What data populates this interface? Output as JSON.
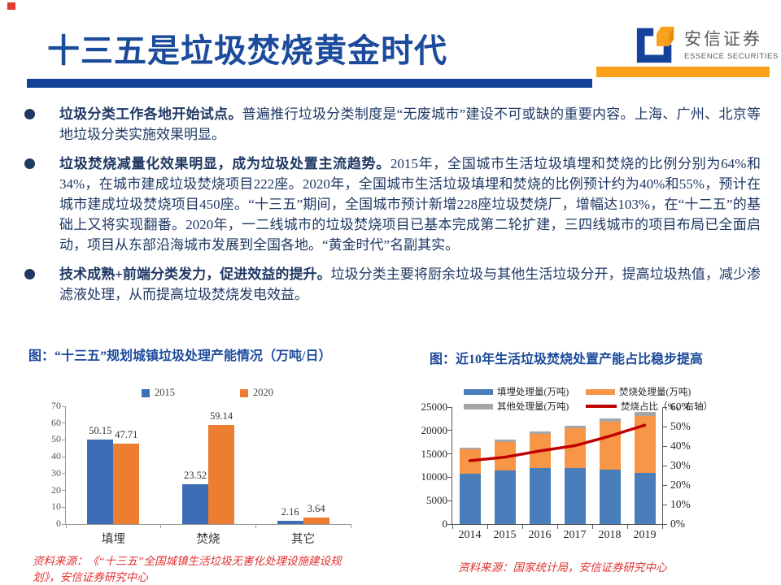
{
  "slide": {
    "title": "十三五是垃圾焚烧黄金时代",
    "logo": {
      "cn": "安信证券",
      "en": "ESSENCE SECURITIES"
    },
    "bullets": [
      {
        "lead": "垃圾分类工作各地开始试点。",
        "body": "普遍推行垃圾分类制度是“无废城市”建设不可或缺的重要内容。上海、广州、北京等地垃圾分类实施效果明显。"
      },
      {
        "lead": "垃圾焚烧减量化效果明显，成为垃圾处置主流趋势。",
        "body": "2015年，全国城市生活垃圾填埋和焚烧的比例分别为64%和34%，在城市建成垃圾焚烧项目222座。2020年，全国城市生活垃圾填埋和焚烧的比例预计约为40%和55%，预计在城市建成垃圾焚烧项目450座。“十三五”期间，全国城市预计新增228座垃圾焚烧厂，增幅达103%，在“十二五”的基础上又将实现翻番。2020年，一二线城市的垃圾焚烧项目已基本完成第二轮扩建，三四线城市的项目布局已全面启动，项目从东部沿海城市发展到全国各地。“黄金时代”名副其实。"
      },
      {
        "lead": "技术成熟+前端分类发力，促进效益的提升。",
        "body": "垃圾分类主要将厨余垃圾与其他生活垃圾分开，提高垃圾热值，减少渗滤液处理，从而提高垃圾焚烧发电效益。"
      }
    ]
  },
  "colors": {
    "title_blue": "#1c4b9c",
    "body_navy": "#1f3864",
    "divider_blue": "#14419a",
    "divider_orange": "#f9a11b",
    "corner_red": "#e03c31",
    "source_red": "#e03131"
  },
  "chart_data": [
    {
      "type": "bar",
      "title": "图：“十三五”规划城镇垃圾处理产能情况（万吨/日）",
      "categories": [
        "填埋",
        "焚烧",
        "其它"
      ],
      "series": [
        {
          "name": "2015",
          "color": "#3e6db5",
          "values": [
            50.15,
            23.52,
            2.16
          ]
        },
        {
          "name": "2020",
          "color": "#ed7d31",
          "values": [
            47.71,
            59.14,
            3.64
          ]
        }
      ],
      "ylim": [
        0,
        70
      ],
      "yticks": [
        0,
        10,
        20,
        30,
        40,
        50,
        60,
        70
      ],
      "grid": false,
      "legend_position": "top-center",
      "source": "资料来源：《“十三五”全国城镇生活垃圾无害化处理设施建设规划》，安信证券研究中心"
    },
    {
      "type": "stacked-bar-line",
      "title": "图：近10年生活垃圾焚烧处置产能占比稳步提高",
      "categories": [
        "2014",
        "2015",
        "2016",
        "2017",
        "2018",
        "2019"
      ],
      "bar_series": [
        {
          "name": "填埋处理量(万吨)",
          "color": "#4a7ebb",
          "values": [
            10700,
            11400,
            11900,
            12040,
            11700,
            10950
          ]
        },
        {
          "name": "焚烧处理量(万吨)",
          "color": "#f79646",
          "values": [
            5300,
            6200,
            7400,
            8460,
            10190,
            12170
          ]
        },
        {
          "name": "其他处理量(万吨)",
          "color": "#a6a6a6",
          "values": [
            400,
            420,
            430,
            530,
            680,
            890
          ]
        }
      ],
      "line_series": {
        "name": "焚烧占比（%，右轴）",
        "color": "#c00000",
        "values": [
          32.5,
          34.3,
          37.5,
          40.2,
          45.1,
          50.7
        ]
      },
      "ylim_left": [
        0,
        25000
      ],
      "yticks_left": [
        0,
        5000,
        10000,
        15000,
        20000,
        25000
      ],
      "ylim_right": [
        0,
        60
      ],
      "yticks_right": [
        "0%",
        "10%",
        "20%",
        "30%",
        "40%",
        "50%",
        "60%"
      ],
      "grid": false,
      "legend_position": "top",
      "source": "资料来源：国家统计局，安信证券研究中心"
    }
  ]
}
